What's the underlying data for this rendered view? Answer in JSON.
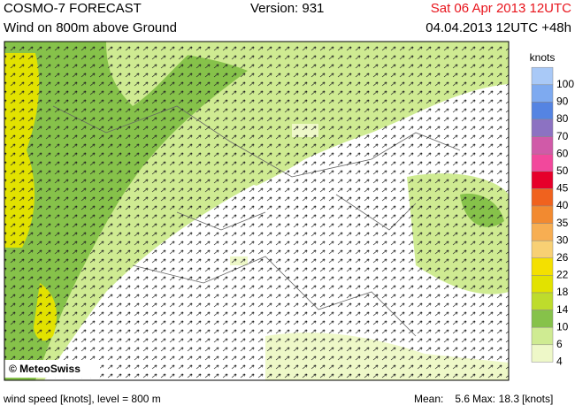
{
  "header": {
    "title": "COSMO-7 FORECAST",
    "subtitle": "Wind on 800m above Ground",
    "version": "Version: 931",
    "valid_time": "Sat 06 Apr 2013 12UTC",
    "run_time": "04.04.2013 12UTC +48h"
  },
  "map": {
    "credit": "© MeteoSwiss"
  },
  "legend": {
    "title": "knots",
    "levels": [
      {
        "label": "100",
        "color": "#a9c9f7"
      },
      {
        "label": "90",
        "color": "#7eaaf0"
      },
      {
        "label": "80",
        "color": "#5584e2"
      },
      {
        "label": "70",
        "color": "#8c72c2"
      },
      {
        "label": "60",
        "color": "#d05aa8"
      },
      {
        "label": "50",
        "color": "#f2489c"
      },
      {
        "label": "45",
        "color": "#e6002a"
      },
      {
        "label": "40",
        "color": "#f0621e"
      },
      {
        "label": "35",
        "color": "#f28a30"
      },
      {
        "label": "30",
        "color": "#f7ae52"
      },
      {
        "label": "26",
        "color": "#f8d074"
      },
      {
        "label": "22",
        "color": "#f4e000"
      },
      {
        "label": "18",
        "color": "#e2e200"
      },
      {
        "label": "14",
        "color": "#bedc2c"
      },
      {
        "label": "10",
        "color": "#86c24a"
      },
      {
        "label": "6",
        "color": "#cfeb92"
      },
      {
        "label": "4",
        "color": "#eef8c8"
      }
    ]
  },
  "footer": {
    "caption": "wind speed [knots], level = 800 m",
    "mean_label": "Mean:",
    "mean": 5.6,
    "max_label": "Max:",
    "max": 18.3,
    "unit": "[knots]"
  }
}
